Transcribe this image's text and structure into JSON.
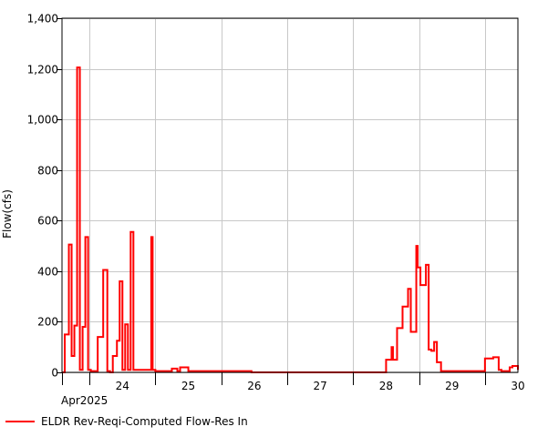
{
  "chart_data": {
    "type": "line",
    "step": true,
    "title": "",
    "ylabel": "Flow(cfs)",
    "xlabel": "",
    "ylim": [
      0,
      1400
    ],
    "yticks": [
      0,
      200,
      400,
      600,
      800,
      1000,
      1200,
      1400
    ],
    "ytick_labels": [
      "0",
      "200",
      "400",
      "600",
      "800",
      "1,000",
      "1,200",
      "1,400"
    ],
    "xlim": [
      "2025-04-23 14:00",
      "2025-04-30 12:00"
    ],
    "day_labels": [
      "24",
      "25",
      "26",
      "27",
      "28",
      "29",
      "30"
    ],
    "month_label": "Apr2025",
    "grid": true,
    "legend_position": "bottom-left",
    "series": [
      {
        "name": "ELDR Rev-Reqi-Computed Flow-Res In",
        "color": "#ff0000",
        "x": [
          "2025-04-23 14:00",
          "2025-04-23 15:00",
          "2025-04-23 16:30",
          "2025-04-23 17:30",
          "2025-04-23 18:30",
          "2025-04-23 19:30",
          "2025-04-23 20:30",
          "2025-04-23 21:30",
          "2025-04-23 22:30",
          "2025-04-23 23:30",
          "2025-04-24 00:30",
          "2025-04-24 01:30",
          "2025-04-24 03:00",
          "2025-04-24 05:00",
          "2025-04-24 06:30",
          "2025-04-24 07:30",
          "2025-04-24 08:30",
          "2025-04-24 10:00",
          "2025-04-24 11:00",
          "2025-04-24 12:00",
          "2025-04-24 13:00",
          "2025-04-24 14:00",
          "2025-04-24 15:00",
          "2025-04-24 16:00",
          "2025-04-24 17:00",
          "2025-04-24 18:00",
          "2025-04-24 19:00",
          "2025-04-24 19:30",
          "2025-04-24 20:30",
          "2025-04-24 21:00",
          "2025-04-24 22:00",
          "2025-04-24 22:30",
          "2025-04-24 23:00",
          "2025-04-25 00:00",
          "2025-04-25 01:00",
          "2025-04-25 02:00",
          "2025-04-25 03:00",
          "2025-04-25 06:00",
          "2025-04-25 07:00",
          "2025-04-25 08:00",
          "2025-04-25 09:00",
          "2025-04-25 10:00",
          "2025-04-25 12:00",
          "2025-04-25 18:00",
          "2025-04-25 23:00",
          "2025-04-26 00:00",
          "2025-04-26 03:00",
          "2025-04-26 04:00",
          "2025-04-26 07:00",
          "2025-04-26 08:00",
          "2025-04-26 11:00",
          "2025-04-26 12:00",
          "2025-04-26 18:00",
          "2025-04-26 23:00",
          "2025-04-27 06:00",
          "2025-04-27 12:00",
          "2025-04-27 18:00",
          "2025-04-27 23:00",
          "2025-04-28 06:00",
          "2025-04-28 12:00",
          "2025-04-28 14:00",
          "2025-04-28 14:30",
          "2025-04-28 16:00",
          "2025-04-28 18:00",
          "2025-04-28 20:00",
          "2025-04-28 21:00",
          "2025-04-28 23:00",
          "2025-04-28 23:30",
          "2025-04-29 00:30",
          "2025-04-29 02:30",
          "2025-04-29 03:30",
          "2025-04-29 04:30",
          "2025-04-29 05:30",
          "2025-04-29 06:30",
          "2025-04-29 08:00",
          "2025-04-29 12:00",
          "2025-04-29 18:00",
          "2025-04-29 23:00",
          "2025-04-30 00:00",
          "2025-04-30 03:00",
          "2025-04-30 05:00",
          "2025-04-30 06:00",
          "2025-04-30 09:00",
          "2025-04-30 10:00",
          "2025-04-30 12:00"
        ],
        "y": [
          0,
          150,
          505,
          65,
          185,
          1205,
          10,
          180,
          535,
          10,
          5,
          5,
          140,
          405,
          5,
          0,
          65,
          125,
          360,
          10,
          190,
          10,
          555,
          10,
          10,
          10,
          10,
          10,
          10,
          10,
          10,
          535,
          10,
          5,
          5,
          5,
          5,
          15,
          15,
          5,
          20,
          20,
          5,
          5,
          5,
          5,
          5,
          5,
          5,
          5,
          0,
          0,
          0,
          0,
          0,
          0,
          0,
          0,
          0,
          50,
          100,
          50,
          175,
          260,
          330,
          160,
          500,
          415,
          345,
          425,
          90,
          85,
          120,
          40,
          5,
          5,
          5,
          5,
          55,
          60,
          10,
          5,
          20,
          25,
          10
        ]
      }
    ]
  },
  "legend": {
    "label": "ELDR Rev-Reqi-Computed Flow-Res In"
  }
}
